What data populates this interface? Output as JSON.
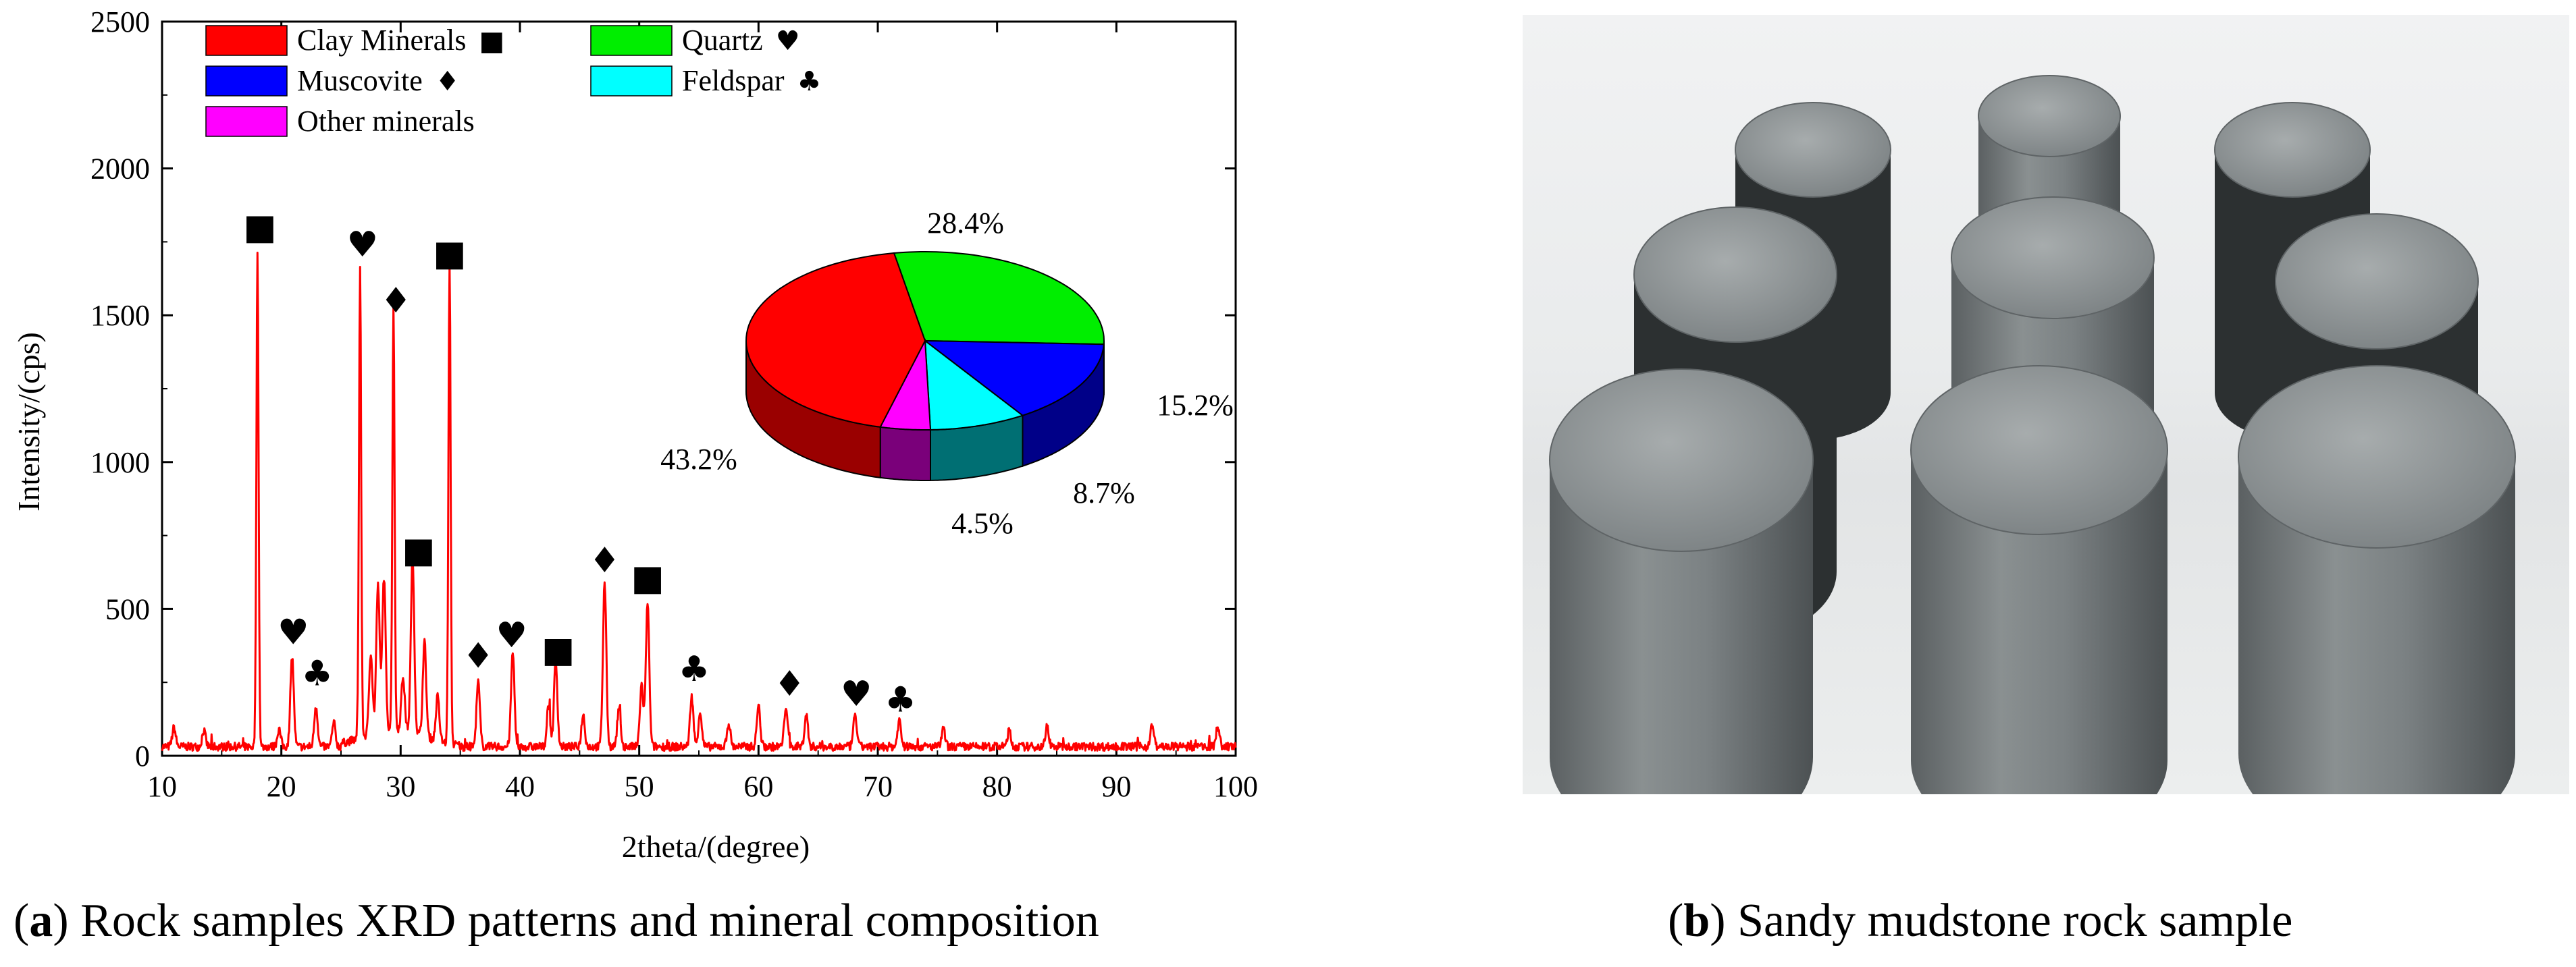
{
  "chart_data": {
    "type": "line",
    "xlabel": "2theta/(degree)",
    "ylabel": "Intensity/(cps)",
    "xlim": [
      10,
      100
    ],
    "ylim": [
      0,
      2500
    ],
    "xticks": [
      10,
      20,
      30,
      40,
      50,
      60,
      70,
      80,
      90,
      100
    ],
    "yticks": [
      0,
      500,
      1000,
      1500,
      2000,
      2500
    ],
    "grid": false,
    "baseline": 25,
    "peaks": [
      {
        "x": 11.0,
        "y": 65
      },
      {
        "x": 13.5,
        "y": 55
      },
      {
        "x": 18.0,
        "y": 1690
      },
      {
        "x": 19.8,
        "y": 60
      },
      {
        "x": 20.9,
        "y": 310
      },
      {
        "x": 22.9,
        "y": 140
      },
      {
        "x": 24.4,
        "y": 80
      },
      {
        "x": 26.6,
        "y": 1590
      },
      {
        "x": 27.5,
        "y": 280
      },
      {
        "x": 28.1,
        "y": 500
      },
      {
        "x": 28.6,
        "y": 520
      },
      {
        "x": 29.4,
        "y": 1450
      },
      {
        "x": 30.2,
        "y": 180
      },
      {
        "x": 31.0,
        "y": 590
      },
      {
        "x": 32.0,
        "y": 320
      },
      {
        "x": 33.1,
        "y": 150
      },
      {
        "x": 34.1,
        "y": 1630
      },
      {
        "x": 36.5,
        "y": 220
      },
      {
        "x": 39.4,
        "y": 320
      },
      {
        "x": 42.4,
        "y": 140
      },
      {
        "x": 43.0,
        "y": 290
      },
      {
        "x": 45.3,
        "y": 110
      },
      {
        "x": 47.1,
        "y": 560
      },
      {
        "x": 48.3,
        "y": 130
      },
      {
        "x": 50.2,
        "y": 210
      },
      {
        "x": 50.7,
        "y": 490
      },
      {
        "x": 54.4,
        "y": 170
      },
      {
        "x": 55.1,
        "y": 120
      },
      {
        "x": 57.5,
        "y": 80
      },
      {
        "x": 60.0,
        "y": 140
      },
      {
        "x": 62.3,
        "y": 140
      },
      {
        "x": 64.0,
        "y": 110
      },
      {
        "x": 68.1,
        "y": 110
      },
      {
        "x": 71.8,
        "y": 90
      },
      {
        "x": 75.5,
        "y": 60
      },
      {
        "x": 81.0,
        "y": 55
      },
      {
        "x": 84.2,
        "y": 70
      },
      {
        "x": 93.0,
        "y": 75
      },
      {
        "x": 98.5,
        "y": 70
      }
    ],
    "markers": [
      {
        "x": 18.2,
        "y": 1760,
        "symbol": "■"
      },
      {
        "x": 21.0,
        "y": 380,
        "symbol": "♥"
      },
      {
        "x": 23.0,
        "y": 240,
        "symbol": "♣"
      },
      {
        "x": 26.8,
        "y": 1700,
        "symbol": "♥"
      },
      {
        "x": 29.6,
        "y": 1510,
        "symbol": "♦"
      },
      {
        "x": 31.5,
        "y": 660,
        "symbol": "■"
      },
      {
        "x": 34.1,
        "y": 1670,
        "symbol": "■"
      },
      {
        "x": 36.5,
        "y": 300,
        "symbol": "♦"
      },
      {
        "x": 39.3,
        "y": 370,
        "symbol": "♥"
      },
      {
        "x": 43.2,
        "y": 320,
        "symbol": "■"
      },
      {
        "x": 47.1,
        "y": 625,
        "symbol": "♦"
      },
      {
        "x": 50.7,
        "y": 565,
        "symbol": "■"
      },
      {
        "x": 54.6,
        "y": 255,
        "symbol": "♣"
      },
      {
        "x": 62.6,
        "y": 205,
        "symbol": "♦"
      },
      {
        "x": 68.2,
        "y": 170,
        "symbol": "♥"
      },
      {
        "x": 71.9,
        "y": 150,
        "symbol": "♣"
      }
    ],
    "legend": [
      {
        "label": "Clay Minerals",
        "symbol": "■",
        "color": "#ff0000"
      },
      {
        "label": "Quartz",
        "symbol": "♥",
        "color": "#00ee00"
      },
      {
        "label": "Muscovite",
        "symbol": "♦",
        "color": "#0000ff"
      },
      {
        "label": "Feldspar",
        "symbol": "♣",
        "color": "#00ffff"
      },
      {
        "label": "Other minerals",
        "symbol": "",
        "color": "#ff00ff"
      }
    ],
    "pie": {
      "type": "pie",
      "slices": [
        {
          "label": "Quartz",
          "value": 28.4,
          "text": "28.4%",
          "color": "#00ee00",
          "side": "#00aa00"
        },
        {
          "label": "Muscovite",
          "value": 15.2,
          "text": "15.2%",
          "color": "#0000ff",
          "side": "#000088"
        },
        {
          "label": "Feldspar",
          "value": 8.7,
          "text": "8.7%",
          "color": "#00ffff",
          "side": "#006f73"
        },
        {
          "label": "Other minerals",
          "value": 4.5,
          "text": "4.5%",
          "color": "#ff00ff",
          "side": "#7a007a"
        },
        {
          "label": "Clay Minerals",
          "value": 43.2,
          "text": "43.2%",
          "color": "#ff0000",
          "side": "#9a0000"
        }
      ]
    }
  },
  "captions": {
    "a_letter": "a",
    "a_text": " Rock samples XRD patterns and mineral composition",
    "b_letter": "b",
    "b_text": " Sandy mudstone rock sample"
  },
  "series_color": "#ff0000"
}
